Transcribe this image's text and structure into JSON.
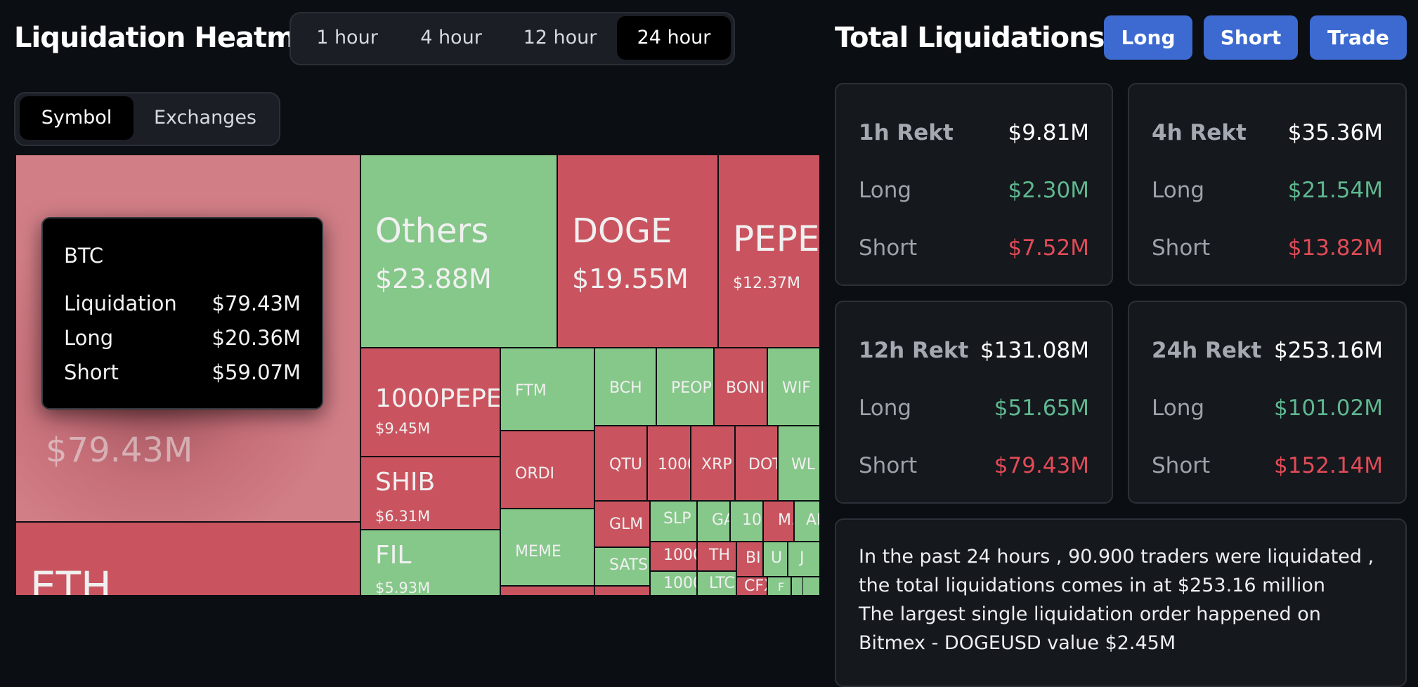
{
  "heatmap": {
    "title": "Liquidation Heatmap",
    "time_tabs": [
      {
        "label": "1 hour",
        "active": false
      },
      {
        "label": "4 hour",
        "active": false
      },
      {
        "label": "12 hour",
        "active": false
      },
      {
        "label": "24 hour",
        "active": true
      }
    ],
    "view_tabs": [
      {
        "label": "Symbol",
        "active": true
      },
      {
        "label": "Exchanges",
        "active": false
      }
    ],
    "tooltip": {
      "symbol": "BTC",
      "rows": [
        {
          "label": "Liquidation",
          "value": "$79.43M"
        },
        {
          "label": "Long",
          "value": "$20.36M"
        },
        {
          "label": "Short",
          "value": "$59.07M"
        }
      ]
    },
    "cells": [
      {
        "sym": "",
        "val": "$79.43M",
        "color": "btc"
      },
      {
        "sym": "ETH",
        "val": "",
        "color": "red"
      },
      {
        "sym": "Others",
        "val": "$23.88M",
        "color": "green"
      },
      {
        "sym": "DOGE",
        "val": "$19.55M",
        "color": "red"
      },
      {
        "sym": "PEPE",
        "val": "$12.37M",
        "color": "red"
      },
      {
        "sym": "1000PEPE",
        "val": "$9.45M",
        "color": "red"
      },
      {
        "sym": "SHIB",
        "val": "$6.31M",
        "color": "red"
      },
      {
        "sym": "FIL",
        "val": "$5.93M",
        "color": "green"
      },
      {
        "sym": "FTM",
        "val": "",
        "color": "green"
      },
      {
        "sym": "ORDI",
        "val": "",
        "color": "red"
      },
      {
        "sym": "MEME",
        "val": "",
        "color": "green"
      },
      {
        "sym": "",
        "val": "",
        "color": "red"
      },
      {
        "sym": "BCH",
        "val": "",
        "color": "green"
      },
      {
        "sym": "PEOP",
        "val": "",
        "color": "green"
      },
      {
        "sym": "BONI",
        "val": "",
        "color": "red"
      },
      {
        "sym": "WIF",
        "val": "",
        "color": "green"
      },
      {
        "sym": "QTU",
        "val": "",
        "color": "red"
      },
      {
        "sym": "1000",
        "val": "",
        "color": "red"
      },
      {
        "sym": "XRP",
        "val": "",
        "color": "red"
      },
      {
        "sym": "DOT",
        "val": "",
        "color": "red"
      },
      {
        "sym": "WL",
        "val": "",
        "color": "green"
      },
      {
        "sym": "GLM",
        "val": "",
        "color": "red"
      },
      {
        "sym": "SATS",
        "val": "",
        "color": "green"
      },
      {
        "sym": "",
        "val": "",
        "color": "red"
      },
      {
        "sym": "SLP",
        "val": "",
        "color": "green"
      },
      {
        "sym": "GA",
        "val": "",
        "color": "green"
      },
      {
        "sym": "10",
        "val": "",
        "color": "green"
      },
      {
        "sym": "M.",
        "val": "",
        "color": "red"
      },
      {
        "sym": "AI",
        "val": "",
        "color": "green"
      },
      {
        "sym": "1000",
        "val": "",
        "color": "red"
      },
      {
        "sym": "TH",
        "val": "",
        "color": "red"
      },
      {
        "sym": "BI",
        "val": "",
        "color": "red"
      },
      {
        "sym": "U",
        "val": "",
        "color": "green"
      },
      {
        "sym": "J",
        "val": "",
        "color": "green"
      },
      {
        "sym": "1000",
        "val": "",
        "color": "green"
      },
      {
        "sym": "LTC",
        "val": "",
        "color": "green"
      },
      {
        "sym": "CFX",
        "val": "",
        "color": "red"
      },
      {
        "sym": "F",
        "val": "",
        "color": "green"
      },
      {
        "sym": "",
        "val": "",
        "color": "green"
      },
      {
        "sym": "",
        "val": "",
        "color": "green"
      }
    ]
  },
  "totals": {
    "title": "Total Liquidations",
    "buttons": [
      "Long",
      "Short",
      "Trade"
    ],
    "cards": [
      {
        "head": "1h Rekt",
        "total": "$9.81M",
        "long_label": "Long",
        "long": "$2.30M",
        "short_label": "Short",
        "short": "$7.52M"
      },
      {
        "head": "4h Rekt",
        "total": "$35.36M",
        "long_label": "Long",
        "long": "$21.54M",
        "short_label": "Short",
        "short": "$13.82M"
      },
      {
        "head": "12h Rekt",
        "total": "$131.08M",
        "long_label": "Long",
        "long": "$51.65M",
        "short_label": "Short",
        "short": "$79.43M"
      },
      {
        "head": "24h Rekt",
        "total": "$253.16M",
        "long_label": "Long",
        "long": "$101.02M",
        "short_label": "Short",
        "short": "$152.14M"
      }
    ],
    "summary_line1": "In the past 24 hours , 90.900 traders were liquidated , the total liquidations comes in at $253.16 million",
    "summary_line2": "The largest single liquidation order happened on Bitmex - DOGEUSD value $2.45M"
  },
  "colors": {
    "background": "#0b0e12",
    "accent": "#3c6ad1",
    "long": "#5fb890",
    "short": "#e04b57",
    "tile_red": "#c9545f",
    "tile_green": "#86c78a"
  }
}
